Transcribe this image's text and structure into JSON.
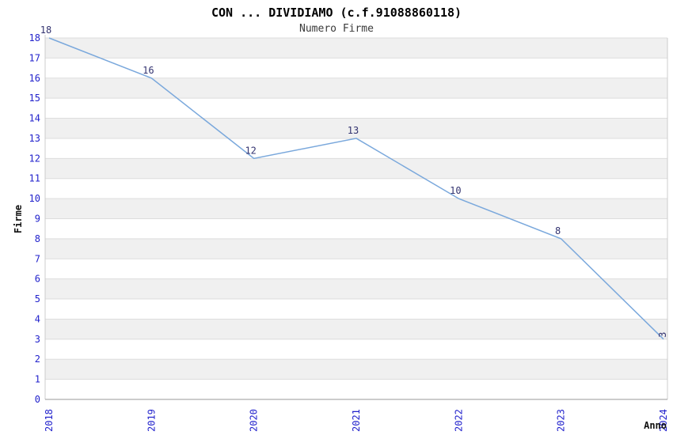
{
  "header": {
    "title": "CON ... DIVIDIAMO (c.f.91088860118)",
    "subtitle": "Numero Firme"
  },
  "chart_data": {
    "type": "line",
    "title": "CON ... DIVIDIAMO (c.f.91088860118)",
    "subtitle": "Numero Firme",
    "xlabel": "Anno",
    "ylabel": "Firme",
    "categories": [
      "2018",
      "2019",
      "2020",
      "2021",
      "2022",
      "2023",
      "2024"
    ],
    "series": [
      {
        "name": "Numero Firme",
        "values": [
          18,
          16,
          12,
          13,
          10,
          8,
          3
        ]
      }
    ],
    "ylim": [
      0,
      18
    ],
    "ytick_step": 1,
    "grid": true,
    "legend_position": "none",
    "band_fill_alternating": true,
    "colors": {
      "line": "#7aa8dc",
      "tick_label": "#2222cc",
      "point_label": "#333370",
      "band": "#f0f0f0",
      "gridline": "#dddddd",
      "side_border": "#cccccc",
      "bottom_axis": "#999999",
      "background": "#ffffff"
    }
  }
}
